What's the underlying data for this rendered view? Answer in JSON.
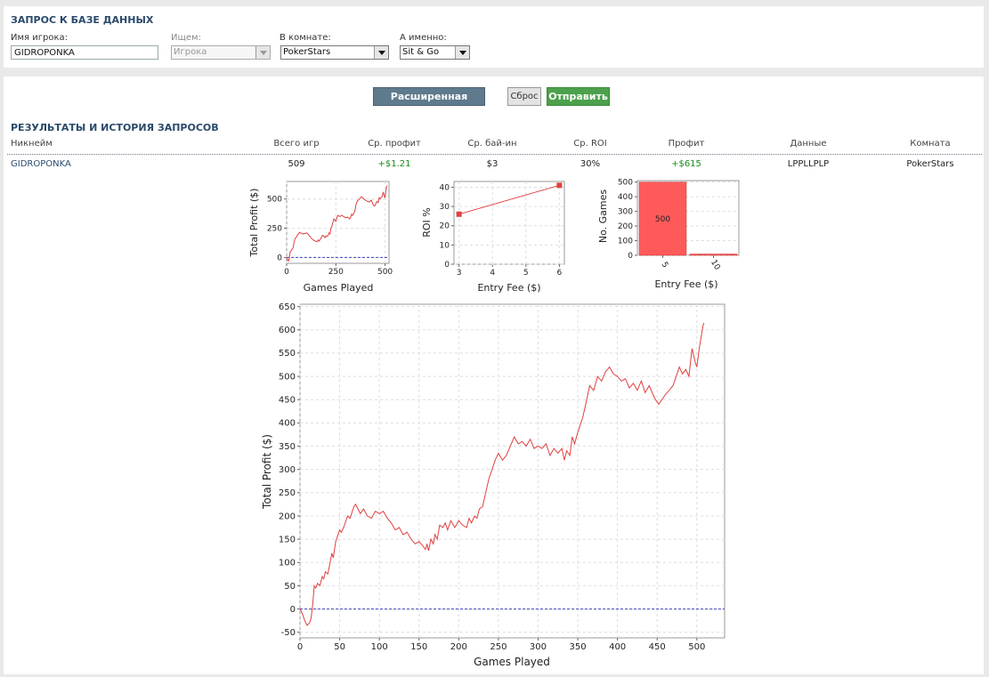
{
  "query": {
    "title": "ЗАПРОС К БАЗЕ ДАННЫХ",
    "player_label": "Имя игрока:",
    "player_value": "GIDROPONKA",
    "search_label": "Ищем:",
    "search_value": "Игрока",
    "room_label": "В комнате:",
    "room_value": "PokerStars",
    "game_label": "А именно:",
    "game_value": "Sit & Go"
  },
  "buttons": {
    "advanced": "Расширенная форма",
    "reset": "Сброс",
    "send": "Отправить"
  },
  "results": {
    "title": "РЕЗУЛЬТАТЫ И ИСТОРИЯ ЗАПРОСОВ",
    "columns": [
      "Никнейм",
      "Всего игр",
      "Ср. профит",
      "Ср. бай-ин",
      "Ср. ROI",
      "Профит",
      "Данные",
      "Комната"
    ],
    "row": {
      "nickname": "GIDROPONKA",
      "games": "509",
      "avg_profit": "+$1.21",
      "avg_buyin": "$3",
      "avg_roi": "30%",
      "profit": "+$615",
      "data": "LPPLLPLP",
      "room": "PokerStars"
    }
  },
  "colors": {
    "line": "#e04040",
    "bar": "#ff5a5a",
    "baseline": "#4040c0",
    "header": "#2a4a6b",
    "positive": "#1a8a1a"
  },
  "chart_data": [
    {
      "type": "line",
      "xlabel": "Games Played",
      "ylabel": "Total Profit ($)",
      "xlim": [
        0,
        520
      ],
      "ylim": [
        -50,
        650
      ],
      "xticks": [
        0,
        250,
        500
      ],
      "yticks": [
        0,
        250,
        500
      ],
      "grid": true,
      "x": [
        0,
        5,
        10,
        14,
        18,
        22,
        27,
        32,
        37,
        42,
        46,
        50,
        55,
        60,
        65,
        70,
        78,
        85,
        92,
        100,
        108,
        115,
        125,
        135,
        145,
        155,
        160,
        165,
        170,
        175,
        180,
        185,
        190,
        195,
        200,
        205,
        210,
        215,
        220,
        225,
        230,
        235,
        240,
        245,
        250,
        255,
        260,
        270,
        280,
        290,
        300,
        310,
        320,
        325,
        330,
        335,
        340,
        345,
        348,
        352,
        360,
        370,
        380,
        390,
        400,
        410,
        420,
        430,
        440,
        445,
        450,
        455,
        460,
        465,
        470,
        475,
        480,
        485,
        490,
        495,
        500,
        503,
        506,
        509
      ],
      "values": [
        0,
        -20,
        -30,
        0,
        50,
        55,
        70,
        80,
        120,
        160,
        170,
        175,
        195,
        200,
        215,
        210,
        205,
        200,
        205,
        210,
        200,
        185,
        165,
        150,
        140,
        135,
        150,
        140,
        155,
        165,
        185,
        190,
        180,
        170,
        185,
        180,
        185,
        210,
        200,
        250,
        270,
        300,
        330,
        320,
        310,
        340,
        360,
        350,
        360,
        350,
        340,
        345,
        330,
        345,
        370,
        360,
        375,
        390,
        410,
        450,
        485,
        500,
        520,
        505,
        490,
        480,
        475,
        490,
        450,
        440,
        445,
        470,
        480,
        470,
        510,
        500,
        515,
        520,
        560,
        530,
        510,
        560,
        590,
        615
      ],
      "baseline": 0
    },
    {
      "type": "line",
      "xlabel": "Entry Fee ($)",
      "ylabel": "ROI %",
      "xlim": [
        2.85,
        6.15
      ],
      "ylim": [
        0,
        43
      ],
      "xticks": [
        3,
        4,
        5,
        6
      ],
      "yticks": [
        0,
        10,
        20,
        30,
        40
      ],
      "grid": true,
      "x": [
        3,
        6
      ],
      "values": [
        26,
        41
      ]
    },
    {
      "type": "bar",
      "xlabel": "Entry Fee ($)",
      "ylabel": "No. Games",
      "ylim": [
        0,
        510
      ],
      "yticks": [
        0,
        100,
        200,
        300,
        400,
        500
      ],
      "categories": [
        "5",
        "10"
      ],
      "values": [
        500,
        9
      ],
      "data_labels": [
        "500",
        ""
      ],
      "grid": true
    },
    {
      "type": "line",
      "xlabel": "Games Played",
      "ylabel": "Total Profit ($)",
      "xlim": [
        0,
        535
      ],
      "ylim": [
        -62,
        655
      ],
      "xticks": [
        0,
        50,
        100,
        150,
        200,
        250,
        300,
        350,
        400,
        450,
        500
      ],
      "yticks": [
        -50,
        0,
        50,
        100,
        150,
        200,
        250,
        300,
        350,
        400,
        450,
        500,
        550,
        600,
        650
      ],
      "grid": true,
      "x": [
        0,
        3,
        6,
        9,
        12,
        14,
        16,
        18,
        20,
        22,
        25,
        28,
        30,
        32,
        35,
        38,
        40,
        42,
        45,
        48,
        50,
        52,
        55,
        58,
        60,
        63,
        66,
        68,
        70,
        73,
        76,
        80,
        85,
        90,
        95,
        100,
        105,
        110,
        115,
        120,
        125,
        130,
        135,
        140,
        145,
        150,
        155,
        158,
        160,
        162,
        165,
        168,
        170,
        173,
        176,
        180,
        183,
        186,
        190,
        195,
        200,
        205,
        210,
        213,
        216,
        220,
        223,
        226,
        230,
        234,
        238,
        242,
        246,
        250,
        255,
        260,
        265,
        270,
        275,
        280,
        285,
        290,
        295,
        300,
        305,
        310,
        315,
        320,
        325,
        330,
        333,
        336,
        340,
        343,
        346,
        350,
        353,
        356,
        360,
        365,
        370,
        375,
        380,
        385,
        390,
        395,
        400,
        405,
        410,
        415,
        420,
        425,
        430,
        435,
        440,
        445,
        448,
        452,
        456,
        460,
        465,
        470,
        474,
        478,
        482,
        486,
        490,
        494,
        498,
        500,
        503,
        506,
        508,
        509
      ],
      "values": [
        0,
        -10,
        -25,
        -35,
        -30,
        -20,
        10,
        50,
        45,
        55,
        50,
        70,
        65,
        80,
        75,
        100,
        120,
        110,
        145,
        160,
        170,
        165,
        175,
        190,
        200,
        195,
        210,
        220,
        225,
        215,
        205,
        215,
        200,
        195,
        210,
        205,
        210,
        195,
        185,
        170,
        175,
        160,
        165,
        150,
        140,
        145,
        135,
        128,
        140,
        125,
        150,
        140,
        160,
        150,
        180,
        175,
        185,
        170,
        190,
        175,
        190,
        180,
        175,
        195,
        185,
        200,
        195,
        215,
        220,
        250,
        280,
        300,
        320,
        335,
        320,
        330,
        350,
        370,
        355,
        360,
        350,
        365,
        345,
        350,
        345,
        355,
        330,
        345,
        335,
        345,
        320,
        340,
        330,
        370,
        355,
        380,
        395,
        410,
        440,
        480,
        470,
        500,
        490,
        510,
        520,
        505,
        500,
        490,
        495,
        475,
        485,
        470,
        490,
        465,
        480,
        460,
        450,
        440,
        450,
        460,
        470,
        480,
        500,
        520,
        505,
        515,
        500,
        560,
        530,
        520,
        560,
        590,
        610,
        615
      ],
      "baseline": 0
    }
  ]
}
